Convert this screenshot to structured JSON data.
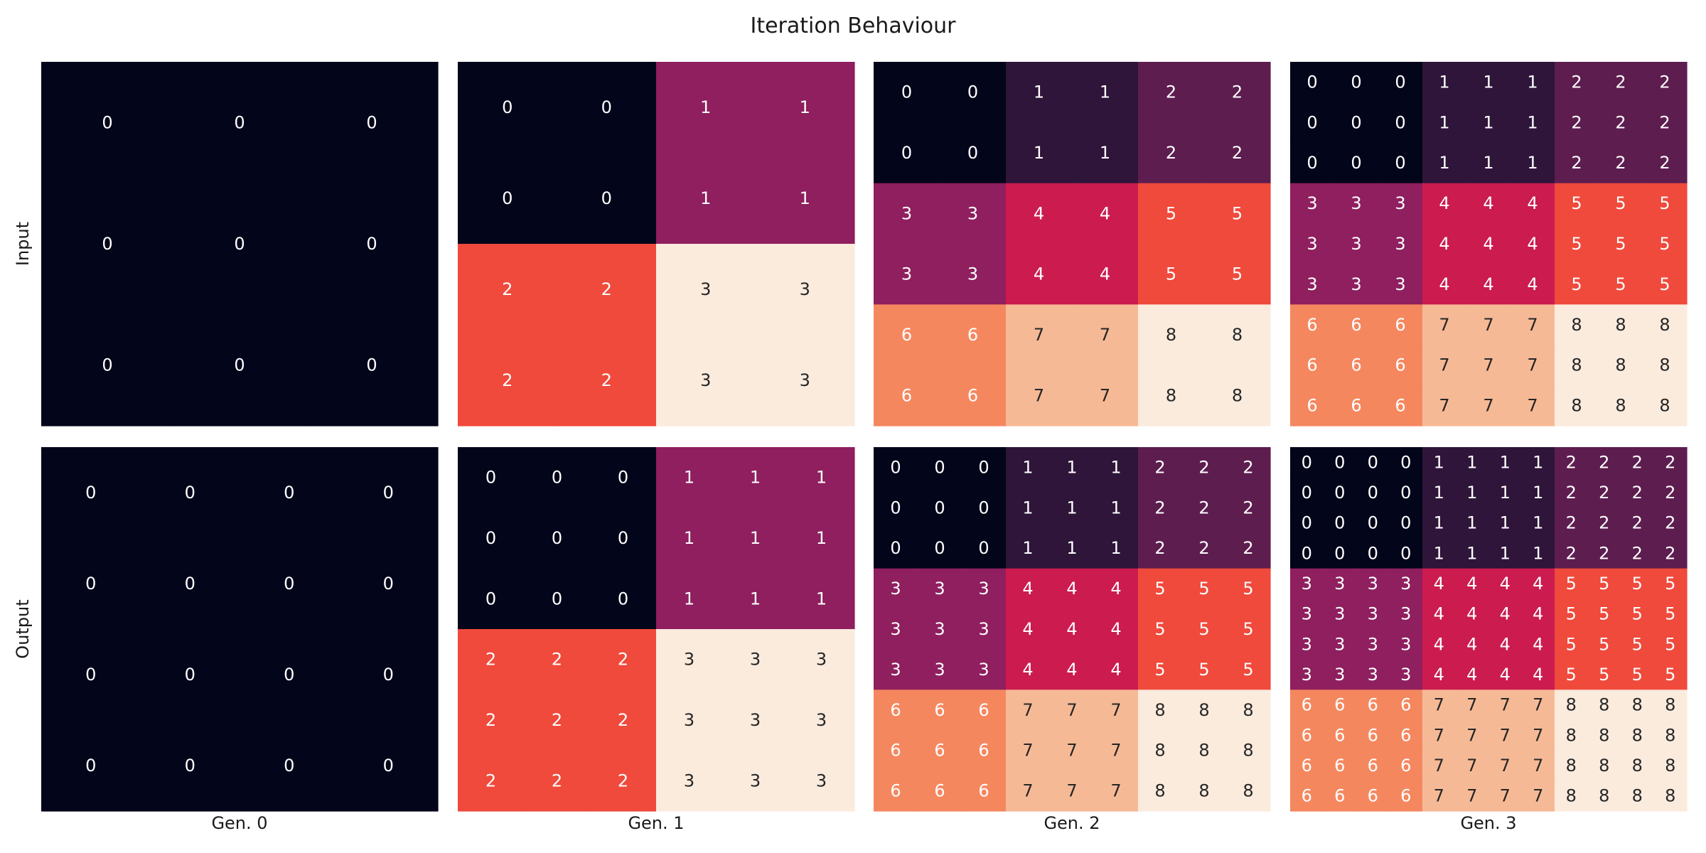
{
  "chart_data": {
    "type": "heatmap",
    "title": "Iteration Behaviour",
    "row_labels": [
      "Input",
      "Output"
    ],
    "column_labels": [
      "Gen. 0",
      "Gen. 1",
      "Gen. 2",
      "Gen. 3"
    ],
    "colormap": [
      "#03051a",
      "#2e1539",
      "#5d1d4f",
      "#8f1f5e",
      "#cb1b4f",
      "#ef4a3c",
      "#f5875f",
      "#f6b996",
      "#faebdd"
    ],
    "color_range": [
      0,
      8
    ],
    "text_color_light": "#ffffff",
    "text_color_dark": "#262626",
    "panels": [
      {
        "row": "Input",
        "column": "Gen. 0",
        "color_max": 0,
        "grid": [
          [
            0,
            0,
            0
          ],
          [
            0,
            0,
            0
          ],
          [
            0,
            0,
            0
          ]
        ]
      },
      {
        "row": "Input",
        "column": "Gen. 1",
        "color_max": 3,
        "grid": [
          [
            0,
            0,
            1,
            1
          ],
          [
            0,
            0,
            1,
            1
          ],
          [
            2,
            2,
            3,
            3
          ],
          [
            2,
            2,
            3,
            3
          ]
        ]
      },
      {
        "row": "Input",
        "column": "Gen. 2",
        "color_max": 8,
        "grid": [
          [
            0,
            0,
            1,
            1,
            2,
            2
          ],
          [
            0,
            0,
            1,
            1,
            2,
            2
          ],
          [
            3,
            3,
            4,
            4,
            5,
            5
          ],
          [
            3,
            3,
            4,
            4,
            5,
            5
          ],
          [
            6,
            6,
            7,
            7,
            8,
            8
          ],
          [
            6,
            6,
            7,
            7,
            8,
            8
          ]
        ]
      },
      {
        "row": "Input",
        "column": "Gen. 3",
        "color_max": 8,
        "grid": [
          [
            0,
            0,
            0,
            1,
            1,
            1,
            2,
            2,
            2
          ],
          [
            0,
            0,
            0,
            1,
            1,
            1,
            2,
            2,
            2
          ],
          [
            0,
            0,
            0,
            1,
            1,
            1,
            2,
            2,
            2
          ],
          [
            3,
            3,
            3,
            4,
            4,
            4,
            5,
            5,
            5
          ],
          [
            3,
            3,
            3,
            4,
            4,
            4,
            5,
            5,
            5
          ],
          [
            3,
            3,
            3,
            4,
            4,
            4,
            5,
            5,
            5
          ],
          [
            6,
            6,
            6,
            7,
            7,
            7,
            8,
            8,
            8
          ],
          [
            6,
            6,
            6,
            7,
            7,
            7,
            8,
            8,
            8
          ],
          [
            6,
            6,
            6,
            7,
            7,
            7,
            8,
            8,
            8
          ]
        ]
      },
      {
        "row": "Output",
        "column": "Gen. 0",
        "color_max": 0,
        "grid": [
          [
            0,
            0,
            0,
            0
          ],
          [
            0,
            0,
            0,
            0
          ],
          [
            0,
            0,
            0,
            0
          ],
          [
            0,
            0,
            0,
            0
          ]
        ]
      },
      {
        "row": "Output",
        "column": "Gen. 1",
        "color_max": 3,
        "grid": [
          [
            0,
            0,
            0,
            1,
            1,
            1
          ],
          [
            0,
            0,
            0,
            1,
            1,
            1
          ],
          [
            0,
            0,
            0,
            1,
            1,
            1
          ],
          [
            2,
            2,
            2,
            3,
            3,
            3
          ],
          [
            2,
            2,
            2,
            3,
            3,
            3
          ],
          [
            2,
            2,
            2,
            3,
            3,
            3
          ]
        ]
      },
      {
        "row": "Output",
        "column": "Gen. 2",
        "color_max": 8,
        "grid": [
          [
            0,
            0,
            0,
            1,
            1,
            1,
            2,
            2,
            2
          ],
          [
            0,
            0,
            0,
            1,
            1,
            1,
            2,
            2,
            2
          ],
          [
            0,
            0,
            0,
            1,
            1,
            1,
            2,
            2,
            2
          ],
          [
            3,
            3,
            3,
            4,
            4,
            4,
            5,
            5,
            5
          ],
          [
            3,
            3,
            3,
            4,
            4,
            4,
            5,
            5,
            5
          ],
          [
            3,
            3,
            3,
            4,
            4,
            4,
            5,
            5,
            5
          ],
          [
            6,
            6,
            6,
            7,
            7,
            7,
            8,
            8,
            8
          ],
          [
            6,
            6,
            6,
            7,
            7,
            7,
            8,
            8,
            8
          ],
          [
            6,
            6,
            6,
            7,
            7,
            7,
            8,
            8,
            8
          ]
        ]
      },
      {
        "row": "Output",
        "column": "Gen. 3",
        "color_max": 8,
        "grid": [
          [
            0,
            0,
            0,
            0,
            1,
            1,
            1,
            1,
            2,
            2,
            2,
            2
          ],
          [
            0,
            0,
            0,
            0,
            1,
            1,
            1,
            1,
            2,
            2,
            2,
            2
          ],
          [
            0,
            0,
            0,
            0,
            1,
            1,
            1,
            1,
            2,
            2,
            2,
            2
          ],
          [
            0,
            0,
            0,
            0,
            1,
            1,
            1,
            1,
            2,
            2,
            2,
            2
          ],
          [
            3,
            3,
            3,
            3,
            4,
            4,
            4,
            4,
            5,
            5,
            5,
            5
          ],
          [
            3,
            3,
            3,
            3,
            4,
            4,
            4,
            4,
            5,
            5,
            5,
            5
          ],
          [
            3,
            3,
            3,
            3,
            4,
            4,
            4,
            4,
            5,
            5,
            5,
            5
          ],
          [
            3,
            3,
            3,
            3,
            4,
            4,
            4,
            4,
            5,
            5,
            5,
            5
          ],
          [
            6,
            6,
            6,
            6,
            7,
            7,
            7,
            7,
            8,
            8,
            8,
            8
          ],
          [
            6,
            6,
            6,
            6,
            7,
            7,
            7,
            7,
            8,
            8,
            8,
            8
          ],
          [
            6,
            6,
            6,
            6,
            7,
            7,
            7,
            7,
            8,
            8,
            8,
            8
          ],
          [
            6,
            6,
            6,
            6,
            7,
            7,
            7,
            7,
            8,
            8,
            8,
            8
          ]
        ]
      }
    ]
  }
}
